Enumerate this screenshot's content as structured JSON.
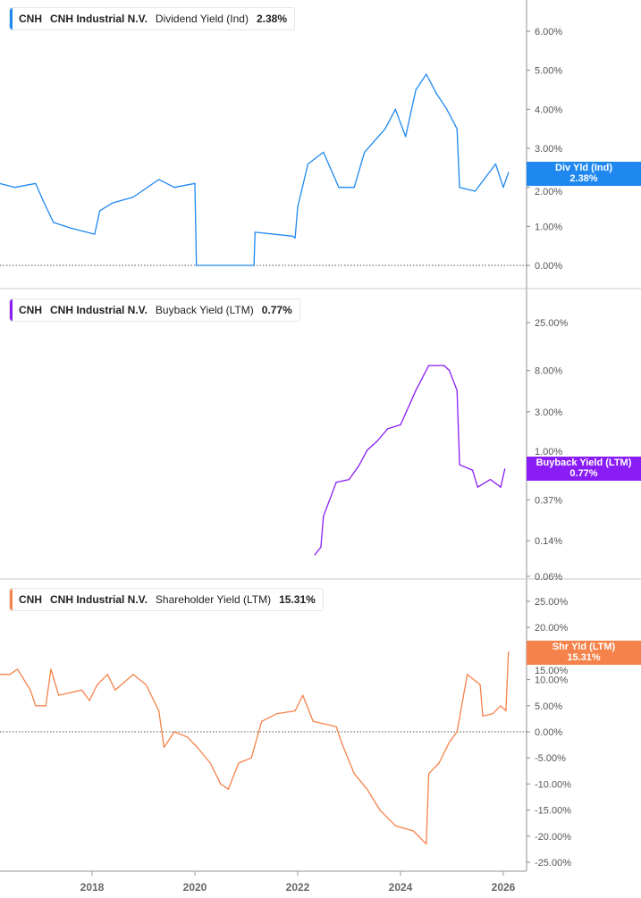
{
  "chart_data": [
    {
      "type": "line",
      "ticker": "CNH",
      "company": "CNH Industrial N.V.",
      "metric": "Dividend Yield (Ind)",
      "current_value": "2.38%",
      "label_title": "Div Yld (Ind)",
      "color": "#1e88f0",
      "scale": "linear",
      "ylim": [
        0,
        6
      ],
      "ytick_labels": [
        "0.00%",
        "1.00%",
        "2.00%",
        "3.00%",
        "4.00%",
        "5.00%",
        "6.00%"
      ],
      "yticks": [
        0,
        1,
        2,
        3,
        4,
        5,
        6
      ],
      "zero_line": true,
      "x": [
        2016.2,
        2016.5,
        2016.9,
        2017.05,
        2017.25,
        2017.6,
        2018.05,
        2018.15,
        2018.4,
        2018.8,
        2019.3,
        2019.6,
        2020.0,
        2020.03,
        2020.05,
        2021.15,
        2021.17,
        2021.9,
        2021.95,
        2022.0,
        2022.2,
        2022.5,
        2022.8,
        2023.1,
        2023.3,
        2023.7,
        2023.9,
        2024.1,
        2024.3,
        2024.5,
        2024.7,
        2024.9,
        2025.1,
        2025.15,
        2025.45,
        2025.85,
        2026.0,
        2026.1
      ],
      "y": [
        2.1,
        2.0,
        2.1,
        1.65,
        1.1,
        0.95,
        0.8,
        1.4,
        1.6,
        1.75,
        2.2,
        2.0,
        2.1,
        0,
        0,
        0,
        0.85,
        0.75,
        0.7,
        1.5,
        2.6,
        2.9,
        2.0,
        2.0,
        2.9,
        3.5,
        4.0,
        3.3,
        4.5,
        4.9,
        4.4,
        4.0,
        3.5,
        2.0,
        1.9,
        2.6,
        2.0,
        2.38
      ]
    },
    {
      "type": "line",
      "ticker": "CNH",
      "company": "CNH Industrial N.V.",
      "metric": "Buyback Yield (LTM)",
      "current_value": "0.77%",
      "label_title": "Buyback Yield (LTM)",
      "color": "#8a1cf5",
      "scale": "log",
      "ylim": [
        0.06,
        25
      ],
      "ytick_labels": [
        "0.06%",
        "0.14%",
        "0.37%",
        "1.00%",
        "3.00%",
        "8.00%",
        "25.00%"
      ],
      "yticks": [
        0.06,
        0.14,
        0.37,
        1,
        3,
        8,
        25
      ],
      "zero_line": false,
      "x": [
        2022.33,
        2022.45,
        2022.5,
        2022.75,
        2023.0,
        2023.2,
        2023.35,
        2023.55,
        2023.75,
        2024.0,
        2024.2,
        2024.3,
        2024.55,
        2024.85,
        2024.95,
        2025.1,
        2025.15,
        2025.4,
        2025.5,
        2025.75,
        2025.95,
        2026.03
      ],
      "y": [
        0.1,
        0.12,
        0.25,
        0.56,
        0.6,
        0.85,
        1.2,
        1.5,
        2.0,
        2.2,
        3.8,
        5.0,
        9.0,
        9.0,
        8.0,
        5.0,
        0.85,
        0.75,
        0.5,
        0.6,
        0.5,
        0.77
      ]
    },
    {
      "type": "line",
      "ticker": "CNH",
      "company": "CNH Industrial N.V.",
      "metric": "Shareholder Yield (LTM)",
      "current_value": "15.31%",
      "label_title": "Shr Yld (LTM)",
      "color": "#f5824a",
      "scale": "linear",
      "ylim": [
        -25,
        25
      ],
      "ytick_labels": [
        "-25.00%",
        "-20.00%",
        "-15.00%",
        "-10.00%",
        "-5.00%",
        "0.00%",
        "5.00%",
        "10.00%",
        "15.00%",
        "20.00%",
        "25.00%"
      ],
      "yticks": [
        -25,
        -20,
        -15,
        -10,
        -5,
        0,
        5,
        10,
        15,
        20,
        25
      ],
      "zero_line": true,
      "x": [
        2016.2,
        2016.4,
        2016.55,
        2016.8,
        2016.9,
        2017.1,
        2017.2,
        2017.35,
        2017.8,
        2017.95,
        2018.1,
        2018.3,
        2018.45,
        2018.8,
        2019.05,
        2019.3,
        2019.4,
        2019.6,
        2019.85,
        2020.05,
        2020.3,
        2020.5,
        2020.65,
        2020.85,
        2021.1,
        2021.3,
        2021.6,
        2021.95,
        2022.1,
        2022.3,
        2022.75,
        2022.85,
        2023.1,
        2023.35,
        2023.6,
        2023.9,
        2024.25,
        2024.5,
        2024.55,
        2024.75,
        2024.95,
        2025.1,
        2025.3,
        2025.55,
        2025.6,
        2025.8,
        2025.95,
        2026.05,
        2026.1
      ],
      "y": [
        11,
        11,
        12,
        8,
        5,
        5,
        12,
        7,
        8,
        6,
        9,
        11,
        8,
        11,
        9,
        4,
        -3,
        0,
        -1,
        -3,
        -6,
        -10,
        -11,
        -6,
        -5,
        2,
        3.5,
        4,
        7,
        2,
        1,
        -2,
        -8,
        -11,
        -15,
        -18,
        -19,
        -21.5,
        -8,
        -6,
        -2,
        0,
        11,
        9,
        3,
        3.5,
        5,
        4,
        15.31
      ]
    }
  ],
  "x_axis": {
    "ticks": [
      2018,
      2020,
      2022,
      2024,
      2026
    ],
    "tick_labels": [
      "2018",
      "2020",
      "2022",
      "2024",
      "2026"
    ],
    "xlim": [
      2016.2,
      2026.6
    ]
  }
}
